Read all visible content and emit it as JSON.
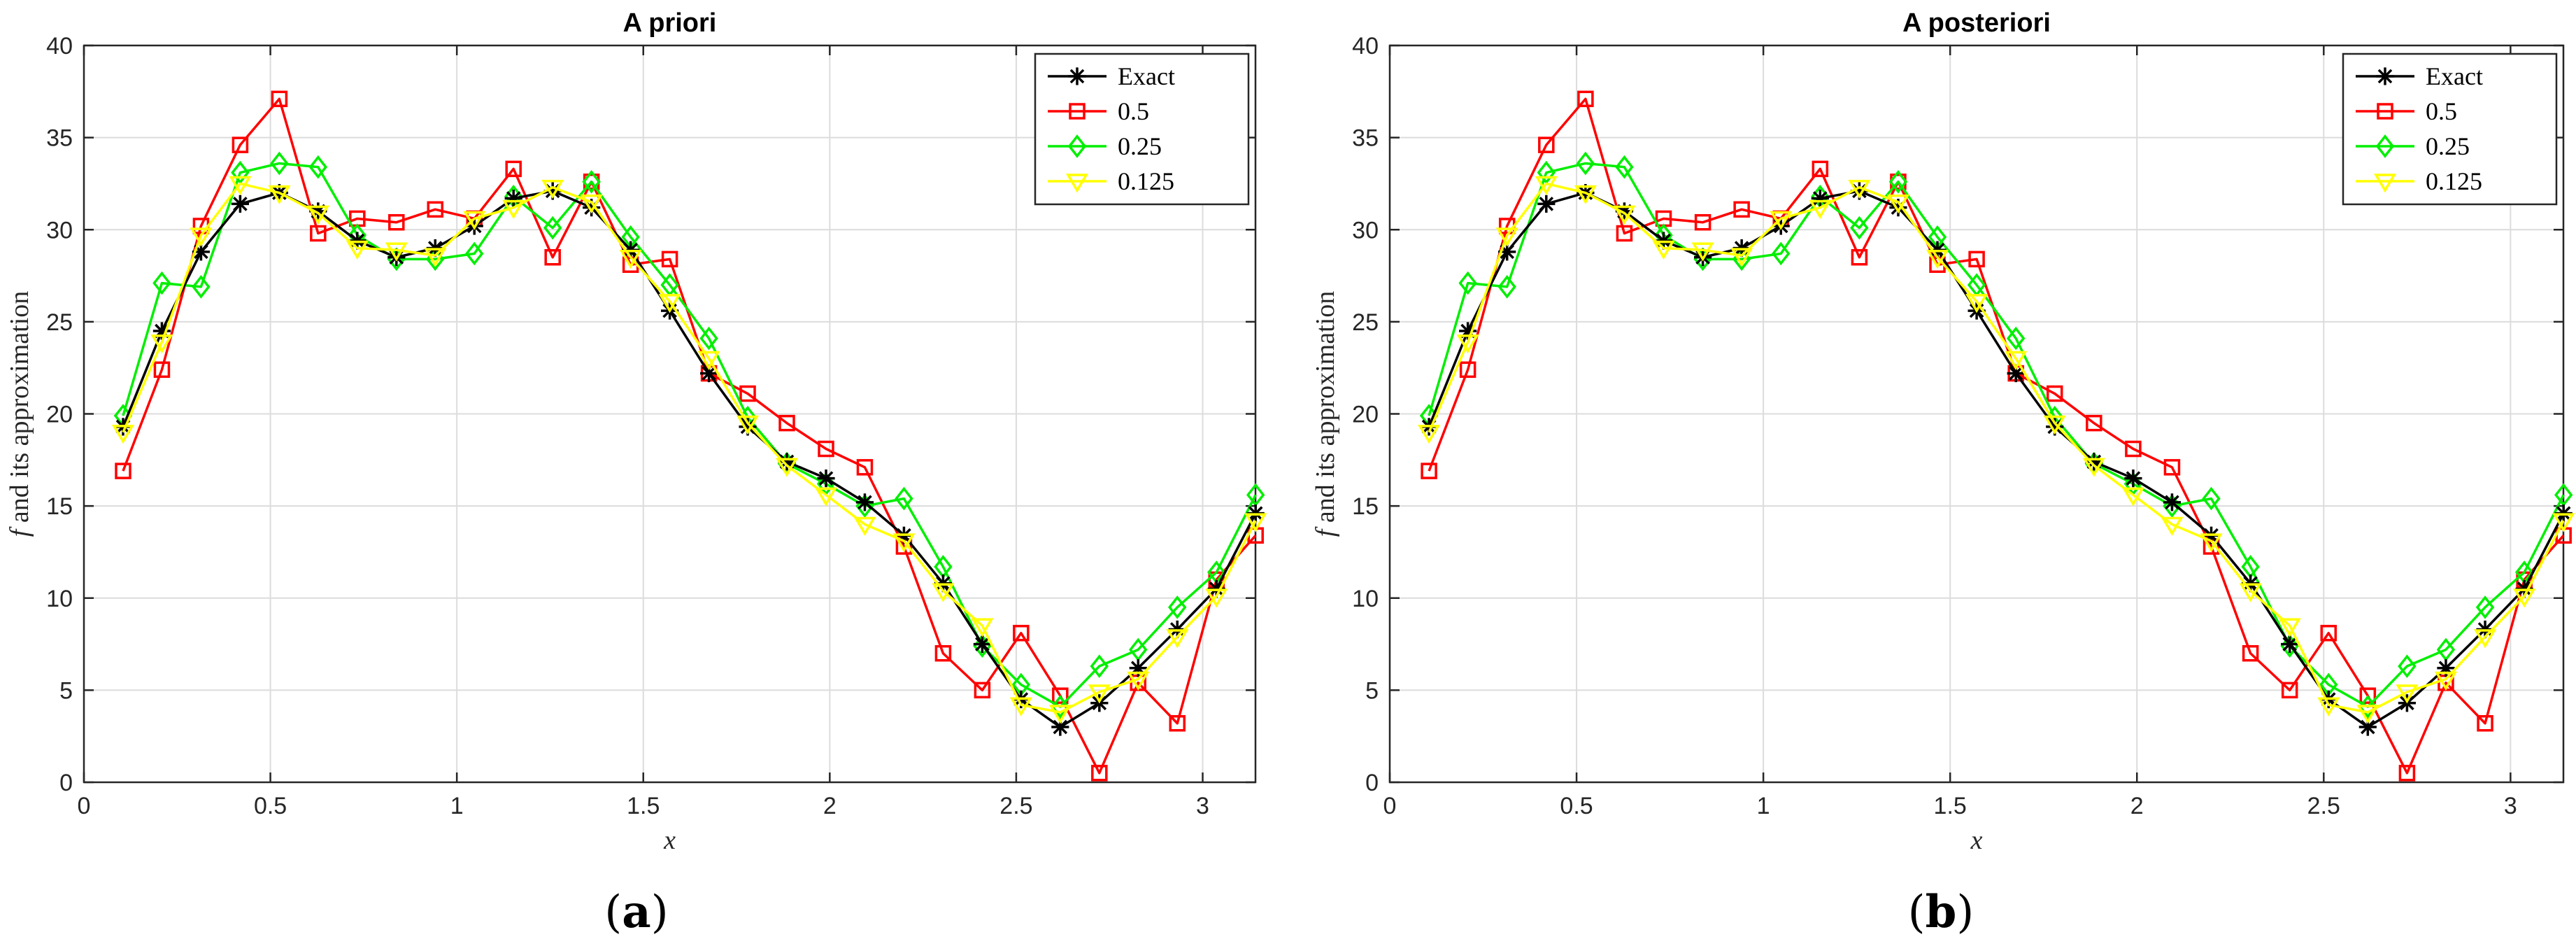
{
  "chart_data": [
    {
      "type": "line",
      "title": "A priori",
      "caption": "(a)",
      "caption_letter": "a",
      "xlabel": "x",
      "ylabel_italic": "f",
      "ylabel_rest": " and its approximation",
      "xlim": [
        0,
        3.1416
      ],
      "ylim": [
        0,
        40
      ],
      "xticks": [
        0,
        0.5,
        1,
        1.5,
        2,
        2.5,
        3
      ],
      "xtick_labels": [
        "0",
        "0.5",
        "1",
        "1.5",
        "2",
        "2.5",
        "3"
      ],
      "yticks": [
        0,
        5,
        10,
        15,
        20,
        25,
        30,
        35,
        40
      ],
      "ytick_labels": [
        "0",
        "5",
        "10",
        "15",
        "20",
        "25",
        "30",
        "35",
        "40"
      ],
      "grid": true,
      "legend_position": "top-right",
      "x": [
        0.105,
        0.209,
        0.314,
        0.419,
        0.524,
        0.628,
        0.733,
        0.838,
        0.942,
        1.047,
        1.152,
        1.257,
        1.361,
        1.466,
        1.571,
        1.676,
        1.78,
        1.885,
        1.99,
        2.094,
        2.199,
        2.304,
        2.409,
        2.513,
        2.618,
        2.723,
        2.827,
        2.932,
        3.037,
        3.142
      ],
      "series": [
        {
          "name": "Exact",
          "color": "#000000",
          "marker": "asterisk",
          "values": [
            19.3,
            24.5,
            28.8,
            31.4,
            32.0,
            31.0,
            29.4,
            28.5,
            29.0,
            30.2,
            31.7,
            32.1,
            31.2,
            28.9,
            25.6,
            22.2,
            19.3,
            17.4,
            16.5,
            15.2,
            13.4,
            10.8,
            7.5,
            4.5,
            3.0,
            4.3,
            6.2,
            8.3,
            10.5,
            14.6
          ]
        },
        {
          "name": "0.5",
          "color": "#ff0000",
          "marker": "square",
          "values": [
            16.9,
            22.4,
            30.2,
            34.6,
            37.1,
            29.8,
            30.6,
            30.4,
            31.1,
            30.6,
            33.3,
            28.5,
            32.6,
            28.1,
            28.4,
            22.2,
            21.1,
            19.5,
            18.1,
            17.1,
            12.8,
            7.0,
            5.0,
            8.1,
            4.7,
            0.5,
            5.4,
            3.2,
            11.0,
            13.4
          ]
        },
        {
          "name": "0.25",
          "color": "#00ee00",
          "marker": "diamond",
          "values": [
            19.9,
            27.1,
            26.9,
            33.1,
            33.6,
            33.4,
            29.7,
            28.4,
            28.4,
            28.7,
            31.8,
            30.1,
            32.6,
            29.6,
            27.0,
            24.1,
            19.8,
            17.3,
            16.2,
            15.0,
            15.4,
            11.7,
            7.4,
            5.3,
            4.1,
            6.3,
            7.2,
            9.5,
            11.4,
            15.6
          ]
        },
        {
          "name": "0.125",
          "color": "#ffff00",
          "marker": "triangle-down",
          "values": [
            19.0,
            23.9,
            29.7,
            32.5,
            32.0,
            30.9,
            29.0,
            28.9,
            28.6,
            30.6,
            31.2,
            32.3,
            31.5,
            28.5,
            26.1,
            23.0,
            19.5,
            17.2,
            15.6,
            14.0,
            13.1,
            10.4,
            8.5,
            4.2,
            3.8,
            4.9,
            5.6,
            7.9,
            10.1,
            14.2
          ]
        }
      ]
    },
    {
      "type": "line",
      "title": "A posteriori",
      "caption": "(b)",
      "caption_letter": "b",
      "xlabel": "x",
      "ylabel_italic": "f",
      "ylabel_rest": " and its approximation",
      "xlim": [
        0,
        3.1416
      ],
      "ylim": [
        0,
        40
      ],
      "xticks": [
        0,
        0.5,
        1,
        1.5,
        2,
        2.5,
        3
      ],
      "xtick_labels": [
        "0",
        "0.5",
        "1",
        "1.5",
        "2",
        "2.5",
        "3"
      ],
      "yticks": [
        0,
        5,
        10,
        15,
        20,
        25,
        30,
        35,
        40
      ],
      "ytick_labels": [
        "0",
        "5",
        "10",
        "15",
        "20",
        "25",
        "30",
        "35",
        "40"
      ],
      "grid": true,
      "legend_position": "top-right",
      "x": [
        0.105,
        0.209,
        0.314,
        0.419,
        0.524,
        0.628,
        0.733,
        0.838,
        0.942,
        1.047,
        1.152,
        1.257,
        1.361,
        1.466,
        1.571,
        1.676,
        1.78,
        1.885,
        1.99,
        2.094,
        2.199,
        2.304,
        2.409,
        2.513,
        2.618,
        2.723,
        2.827,
        2.932,
        3.037,
        3.142
      ],
      "series": [
        {
          "name": "Exact",
          "color": "#000000",
          "marker": "asterisk",
          "values": [
            19.3,
            24.5,
            28.8,
            31.4,
            32.0,
            31.0,
            29.4,
            28.5,
            29.0,
            30.2,
            31.7,
            32.1,
            31.2,
            28.9,
            25.6,
            22.2,
            19.3,
            17.4,
            16.5,
            15.2,
            13.4,
            10.8,
            7.5,
            4.5,
            3.0,
            4.3,
            6.2,
            8.3,
            10.5,
            14.6
          ]
        },
        {
          "name": "0.5",
          "color": "#ff0000",
          "marker": "square",
          "values": [
            16.9,
            22.4,
            30.2,
            34.6,
            37.1,
            29.8,
            30.6,
            30.4,
            31.1,
            30.6,
            33.3,
            28.5,
            32.6,
            28.1,
            28.4,
            22.2,
            21.1,
            19.5,
            18.1,
            17.1,
            12.8,
            7.0,
            5.0,
            8.1,
            4.7,
            0.5,
            5.4,
            3.2,
            11.0,
            13.4
          ]
        },
        {
          "name": "0.25",
          "color": "#00ee00",
          "marker": "diamond",
          "values": [
            19.9,
            27.1,
            26.9,
            33.1,
            33.6,
            33.4,
            29.7,
            28.4,
            28.4,
            28.7,
            31.8,
            30.1,
            32.6,
            29.6,
            27.0,
            24.1,
            19.8,
            17.3,
            16.2,
            15.0,
            15.4,
            11.7,
            7.4,
            5.3,
            4.1,
            6.3,
            7.2,
            9.5,
            11.4,
            15.6
          ]
        },
        {
          "name": "0.125",
          "color": "#ffff00",
          "marker": "triangle-down",
          "values": [
            19.0,
            23.9,
            29.7,
            32.5,
            32.0,
            30.9,
            29.0,
            28.9,
            28.6,
            30.6,
            31.2,
            32.3,
            31.5,
            28.5,
            26.1,
            23.0,
            19.5,
            17.2,
            15.6,
            14.0,
            13.1,
            10.4,
            8.5,
            4.2,
            3.8,
            4.9,
            5.6,
            7.9,
            10.1,
            14.2
          ]
        }
      ]
    }
  ]
}
